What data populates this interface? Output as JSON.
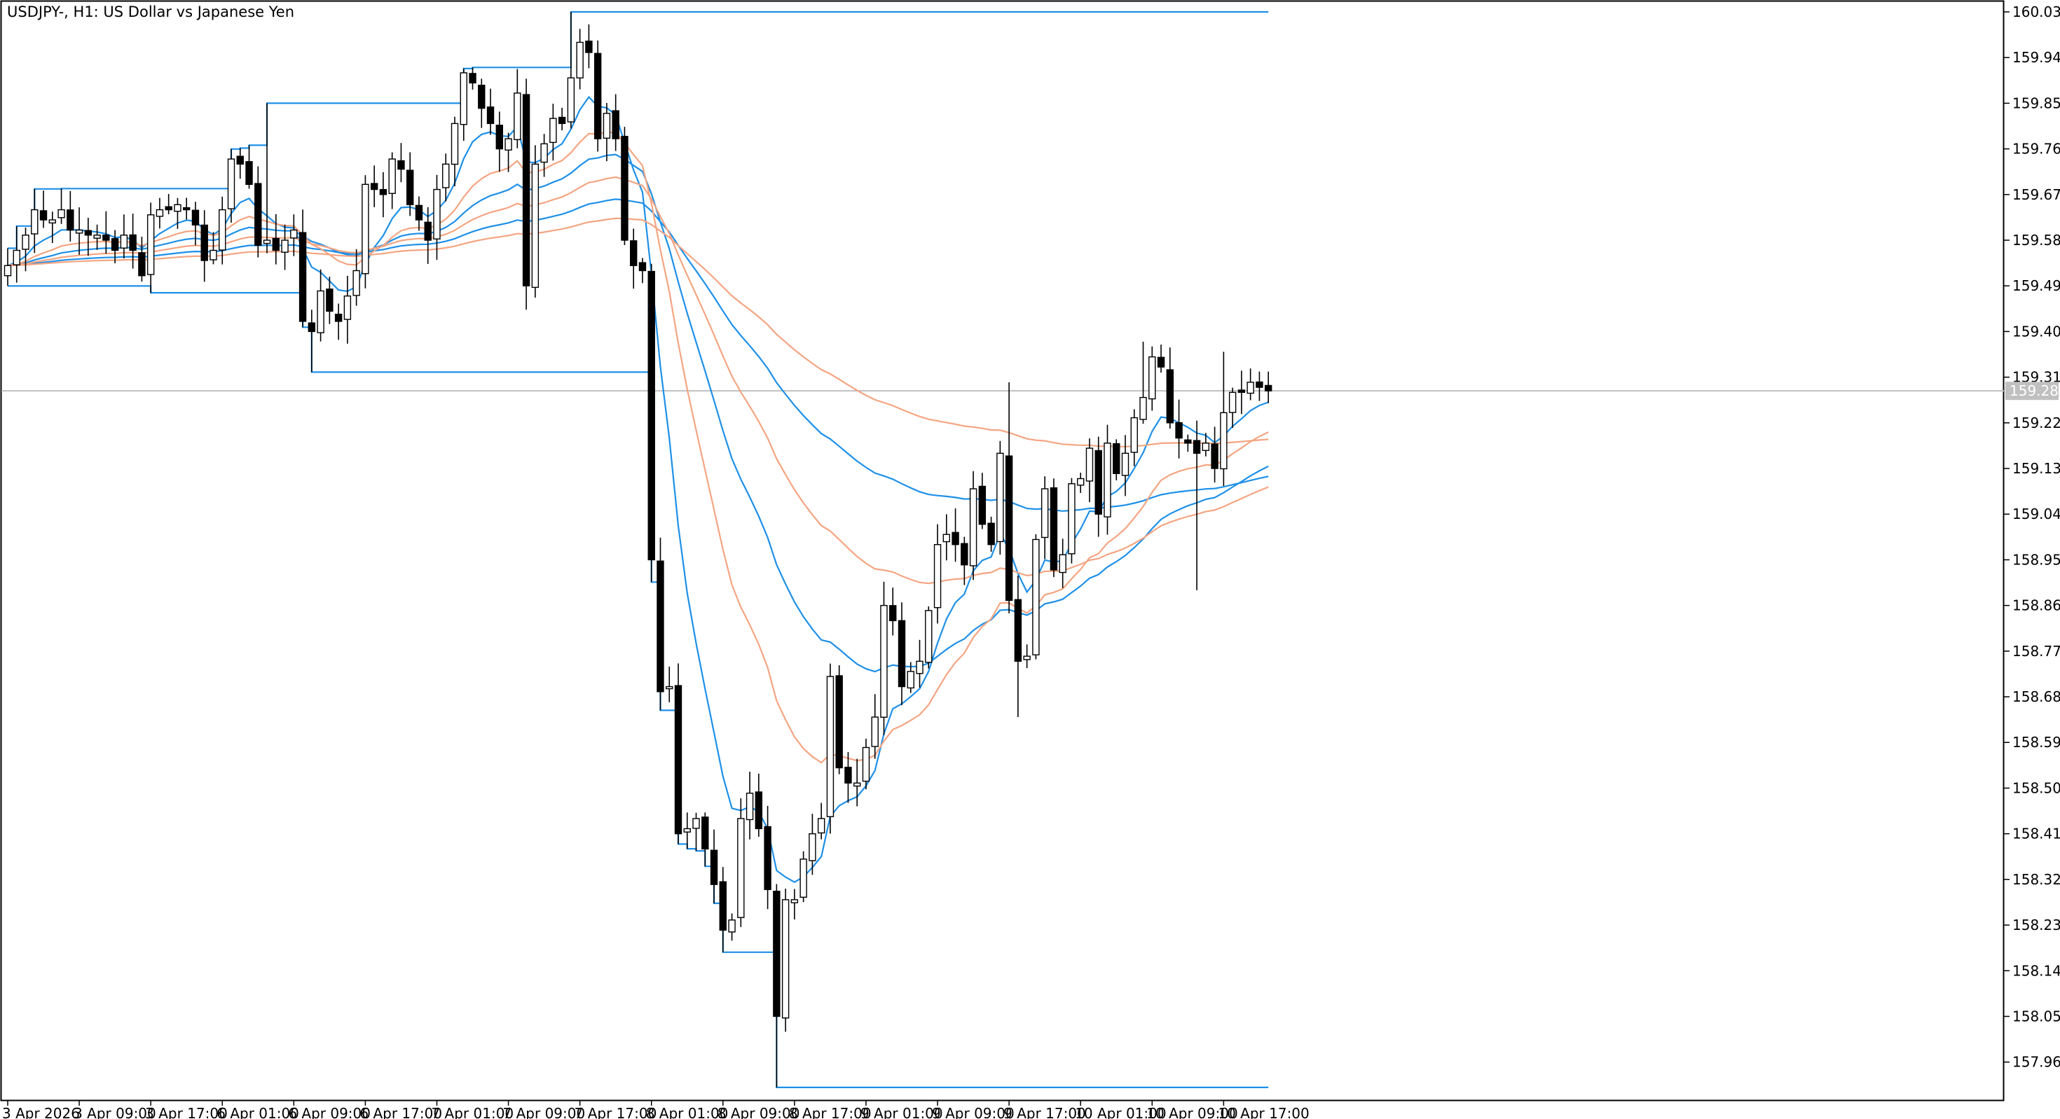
{
  "chart_data": {
    "type": "candlestick",
    "title": "USDJPY-, H1:  US Dollar vs Japanese Yen",
    "symbol": "USDJPY-",
    "timeframe": "H1",
    "current_price": "159.283",
    "ylim": [
      157.885,
      160.03
    ],
    "grid": false,
    "y_ticks": [
      160.03,
      159.94,
      159.85,
      159.76,
      159.67,
      159.58,
      159.49,
      159.4,
      159.31,
      159.22,
      159.13,
      159.04,
      158.95,
      158.86,
      158.77,
      158.68,
      158.59,
      158.5,
      158.41,
      158.32,
      158.23,
      158.14,
      158.05,
      157.96
    ],
    "y_tick_labels": [
      "160.030",
      "159.940",
      "159.850",
      "159.760",
      "159.670",
      "159.580",
      "159.490",
      "159.400",
      "159.310",
      "159.220",
      "159.130",
      "159.040",
      "158.950",
      "158.860",
      "158.770",
      "158.680",
      "158.590",
      "158.500",
      "158.410",
      "158.320",
      "158.230",
      "158.140",
      "158.050",
      "157.960"
    ],
    "x_ticks": [
      {
        "index": 0,
        "label": "3 Apr 2026"
      },
      {
        "index": 8,
        "label": "3 Apr 09:00"
      },
      {
        "index": 16,
        "label": "3 Apr 17:00"
      },
      {
        "index": 24,
        "label": "6 Apr 01:00"
      },
      {
        "index": 32,
        "label": "6 Apr 09:00"
      },
      {
        "index": 40,
        "label": "6 Apr 17:00"
      },
      {
        "index": 48,
        "label": "7 Apr 01:00"
      },
      {
        "index": 56,
        "label": "7 Apr 09:00"
      },
      {
        "index": 64,
        "label": "7 Apr 17:00"
      },
      {
        "index": 72,
        "label": "8 Apr 01:00"
      },
      {
        "index": 80,
        "label": "8 Apr 09:00"
      },
      {
        "index": 88,
        "label": "8 Apr 17:00"
      },
      {
        "index": 96,
        "label": "9 Apr 01:00"
      },
      {
        "index": 104,
        "label": "9 Apr 09:00"
      },
      {
        "index": 112,
        "label": "9 Apr 17:00"
      },
      {
        "index": 120,
        "label": "10 Apr 01:00"
      },
      {
        "index": 128,
        "label": "10 Apr 09:00"
      },
      {
        "index": 136,
        "label": "10 Apr 17:00"
      }
    ],
    "bar_count": 142,
    "close_anchors": [
      [
        0,
        159.53
      ],
      [
        1,
        159.56
      ],
      [
        2,
        159.59
      ],
      [
        3,
        159.64
      ],
      [
        4,
        159.62
      ],
      [
        5,
        159.62
      ],
      [
        6,
        159.64
      ],
      [
        7,
        159.6
      ],
      [
        8,
        159.6
      ],
      [
        9,
        159.59
      ],
      [
        10,
        159.59
      ],
      [
        11,
        159.58
      ],
      [
        12,
        159.56
      ],
      [
        13,
        159.59
      ],
      [
        14,
        159.56
      ],
      [
        15,
        159.51
      ],
      [
        16,
        159.63
      ],
      [
        17,
        159.64
      ],
      [
        18,
        159.64
      ],
      [
        19,
        159.65
      ],
      [
        20,
        159.64
      ],
      [
        21,
        159.61
      ],
      [
        22,
        159.54
      ],
      [
        23,
        159.56
      ],
      [
        24,
        159.64
      ],
      [
        25,
        159.74
      ],
      [
        26,
        159.73
      ],
      [
        27,
        159.69
      ],
      [
        28,
        159.57
      ],
      [
        29,
        159.58
      ],
      [
        30,
        159.56
      ],
      [
        31,
        159.58
      ],
      [
        32,
        159.6
      ],
      [
        33,
        159.42
      ],
      [
        34,
        159.4
      ],
      [
        35,
        159.48
      ],
      [
        36,
        159.44
      ],
      [
        37,
        159.42
      ],
      [
        38,
        159.47
      ],
      [
        39,
        159.52
      ],
      [
        40,
        159.69
      ],
      [
        41,
        159.68
      ],
      [
        42,
        159.67
      ],
      [
        43,
        159.74
      ],
      [
        44,
        159.72
      ],
      [
        45,
        159.65
      ],
      [
        46,
        159.62
      ],
      [
        47,
        159.58
      ],
      [
        48,
        159.68
      ],
      [
        49,
        159.73
      ],
      [
        50,
        159.81
      ],
      [
        51,
        159.91
      ],
      [
        52,
        159.89
      ],
      [
        53,
        159.84
      ],
      [
        54,
        159.81
      ],
      [
        55,
        159.76
      ],
      [
        56,
        159.78
      ],
      [
        57,
        159.87
      ],
      [
        58,
        159.49
      ],
      [
        59,
        159.73
      ],
      [
        60,
        159.77
      ],
      [
        61,
        159.82
      ],
      [
        62,
        159.81
      ],
      [
        63,
        159.9
      ],
      [
        64,
        159.97
      ],
      [
        65,
        159.95
      ],
      [
        66,
        159.78
      ],
      [
        67,
        159.83
      ],
      [
        68,
        159.78
      ],
      [
        69,
        159.58
      ],
      [
        70,
        159.53
      ],
      [
        71,
        159.52
      ],
      [
        72,
        158.95
      ],
      [
        73,
        158.69
      ],
      [
        74,
        158.7
      ],
      [
        75,
        158.41
      ],
      [
        76,
        158.42
      ],
      [
        77,
        158.44
      ],
      [
        78,
        158.38
      ],
      [
        79,
        158.31
      ],
      [
        80,
        158.22
      ],
      [
        81,
        158.24
      ],
      [
        82,
        158.44
      ],
      [
        83,
        158.49
      ],
      [
        84,
        158.42
      ],
      [
        85,
        158.3
      ],
      [
        86,
        158.05
      ],
      [
        87,
        158.28
      ],
      [
        88,
        158.28
      ],
      [
        89,
        158.36
      ],
      [
        90,
        158.41
      ],
      [
        91,
        158.44
      ],
      [
        92,
        158.72
      ],
      [
        93,
        158.54
      ],
      [
        94,
        158.51
      ],
      [
        95,
        158.51
      ],
      [
        96,
        158.58
      ],
      [
        97,
        158.64
      ],
      [
        98,
        158.86
      ],
      [
        99,
        158.83
      ],
      [
        100,
        158.7
      ],
      [
        101,
        158.73
      ],
      [
        102,
        158.75
      ],
      [
        103,
        158.85
      ],
      [
        104,
        158.98
      ],
      [
        105,
        159.0
      ],
      [
        106,
        158.98
      ],
      [
        107,
        158.94
      ],
      [
        108,
        159.09
      ],
      [
        109,
        159.02
      ],
      [
        110,
        158.98
      ],
      [
        111,
        159.16
      ],
      [
        112,
        158.87
      ],
      [
        113,
        158.75
      ],
      [
        114,
        158.76
      ],
      [
        115,
        158.99
      ],
      [
        116,
        159.09
      ],
      [
        117,
        158.93
      ],
      [
        118,
        158.96
      ],
      [
        119,
        159.1
      ],
      [
        120,
        159.11
      ],
      [
        121,
        159.17
      ],
      [
        122,
        159.04
      ],
      [
        123,
        159.18
      ],
      [
        124,
        159.12
      ],
      [
        125,
        159.16
      ],
      [
        126,
        159.23
      ],
      [
        127,
        159.27
      ],
      [
        128,
        159.35
      ],
      [
        129,
        159.33
      ],
      [
        130,
        159.22
      ],
      [
        131,
        159.19
      ],
      [
        132,
        159.18
      ],
      [
        133,
        159.16
      ],
      [
        134,
        159.18
      ],
      [
        135,
        159.13
      ],
      [
        136,
        159.24
      ],
      [
        137,
        159.28
      ],
      [
        138,
        159.28
      ],
      [
        139,
        159.3
      ],
      [
        140,
        159.29
      ],
      [
        141,
        159.283
      ]
    ],
    "indicators": [
      {
        "kind": "ema",
        "period": 8,
        "color": "#1e90e8",
        "style": "solid"
      },
      {
        "kind": "ema",
        "period": 34,
        "color": "#1e90e8",
        "style": "solid"
      },
      {
        "kind": "ema",
        "period": 89,
        "color": "#1e90e8",
        "style": "solid"
      },
      {
        "kind": "lowest_low",
        "period": 100,
        "color": "#1e90e8",
        "style": "step"
      },
      {
        "kind": "highest_high",
        "period": 100,
        "color": "#1e90e8",
        "style": "step"
      },
      {
        "kind": "ema",
        "period": 20,
        "color": "#f4a582",
        "style": "solid"
      },
      {
        "kind": "ema",
        "period": 55,
        "color": "#f4a582",
        "style": "solid"
      },
      {
        "kind": "ema",
        "period": 144,
        "color": "#f4a582",
        "style": "solid"
      }
    ],
    "colors": {
      "background": "#ffffff",
      "bull_body": "#ffffff",
      "bear_body": "#000000",
      "wick": "#000000",
      "axis": "#000000",
      "current_price_line": "#c0c0c0",
      "current_price_label_bg": "#c0c0c0",
      "current_price_label_text": "#ffffff"
    }
  }
}
